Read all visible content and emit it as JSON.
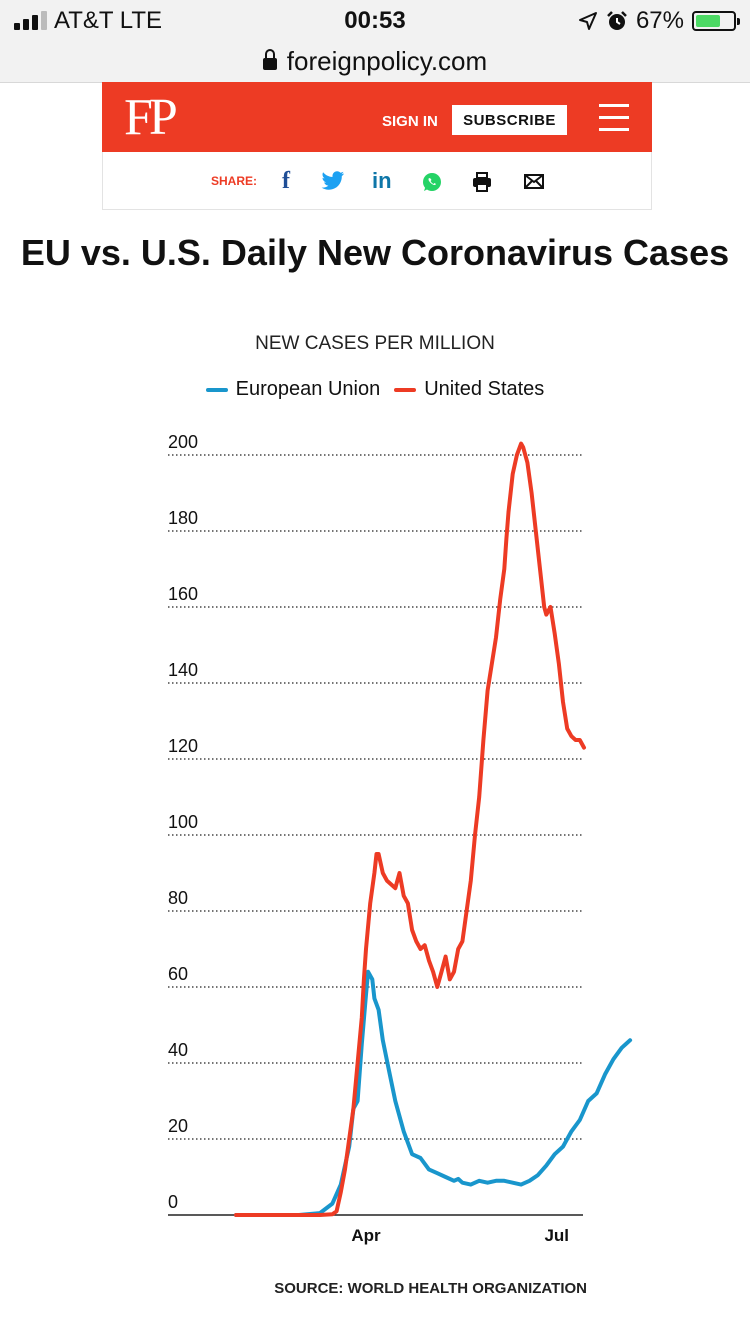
{
  "status_bar": {
    "carrier": "AT&T   LTE",
    "time": "00:53",
    "battery": "67%",
    "battery_level": 0.67
  },
  "browser": {
    "url": "foreignpolicy.com"
  },
  "header": {
    "logo": "FP",
    "sign_in": "SIGN IN",
    "subscribe": "SUBSCRIBE",
    "brand_color": "#ed3b24"
  },
  "share": {
    "label": "SHARE:",
    "icons": [
      "facebook-icon",
      "twitter-icon",
      "linkedin-icon",
      "whatsapp-icon",
      "print-icon",
      "email-icon"
    ]
  },
  "chart_data": {
    "type": "line",
    "title": "EU vs. U.S. Daily New Coronavirus Cases",
    "subtitle": "NEW CASES PER MILLION",
    "xlabel": "",
    "ylabel": "",
    "ylim": [
      0,
      200
    ],
    "yticks": [
      0,
      20,
      40,
      60,
      80,
      100,
      120,
      140,
      160,
      180,
      200
    ],
    "xticks": [
      {
        "label": "Apr",
        "day": 62
      },
      {
        "label": "Jul",
        "day": 153
      }
    ],
    "xlim": [
      0,
      240
    ],
    "grid": true,
    "legend_position": "top",
    "series": [
      {
        "name": "European Union",
        "color": "#1996cc",
        "points": [
          [
            0,
            0
          ],
          [
            30,
            0
          ],
          [
            40,
            0.5
          ],
          [
            46,
            3
          ],
          [
            50,
            8
          ],
          [
            54,
            18
          ],
          [
            56,
            28
          ],
          [
            58,
            30
          ],
          [
            60,
            45
          ],
          [
            62,
            58
          ],
          [
            63,
            64
          ],
          [
            65,
            62
          ],
          [
            66,
            57
          ],
          [
            68,
            54
          ],
          [
            70,
            46
          ],
          [
            73,
            38
          ],
          [
            76,
            30
          ],
          [
            80,
            22
          ],
          [
            84,
            16
          ],
          [
            88,
            15
          ],
          [
            92,
            12
          ],
          [
            96,
            11
          ],
          [
            100,
            10
          ],
          [
            104,
            9
          ],
          [
            106,
            9.5
          ],
          [
            108,
            8.5
          ],
          [
            112,
            8
          ],
          [
            116,
            9
          ],
          [
            120,
            8.5
          ],
          [
            124,
            9
          ],
          [
            128,
            9
          ],
          [
            132,
            8.5
          ],
          [
            136,
            8
          ],
          [
            140,
            9
          ],
          [
            144,
            10.5
          ],
          [
            148,
            13
          ],
          [
            152,
            16
          ],
          [
            156,
            18
          ],
          [
            160,
            22
          ],
          [
            164,
            25
          ],
          [
            168,
            30
          ],
          [
            172,
            32
          ],
          [
            176,
            37
          ],
          [
            180,
            41
          ],
          [
            184,
            44
          ],
          [
            186,
            45
          ],
          [
            188,
            46
          ]
        ]
      },
      {
        "name": "United States",
        "color": "#ed3b24",
        "points": [
          [
            0,
            0
          ],
          [
            40,
            0
          ],
          [
            46,
            0.2
          ],
          [
            48,
            1
          ],
          [
            50,
            6
          ],
          [
            52,
            12
          ],
          [
            54,
            20
          ],
          [
            56,
            28
          ],
          [
            58,
            40
          ],
          [
            60,
            52
          ],
          [
            61,
            62
          ],
          [
            62,
            70
          ],
          [
            64,
            82
          ],
          [
            66,
            90
          ],
          [
            67,
            95
          ],
          [
            68,
            95
          ],
          [
            70,
            90
          ],
          [
            72,
            88
          ],
          [
            74,
            87
          ],
          [
            76,
            86
          ],
          [
            78,
            90
          ],
          [
            80,
            84
          ],
          [
            82,
            82
          ],
          [
            84,
            75
          ],
          [
            86,
            72
          ],
          [
            88,
            70
          ],
          [
            90,
            71
          ],
          [
            92,
            67
          ],
          [
            94,
            64
          ],
          [
            96,
            60
          ],
          [
            98,
            64
          ],
          [
            100,
            68
          ],
          [
            102,
            62
          ],
          [
            104,
            64
          ],
          [
            106,
            70
          ],
          [
            108,
            72
          ],
          [
            110,
            80
          ],
          [
            112,
            88
          ],
          [
            114,
            100
          ],
          [
            116,
            110
          ],
          [
            118,
            125
          ],
          [
            120,
            138
          ],
          [
            122,
            145
          ],
          [
            124,
            152
          ],
          [
            126,
            162
          ],
          [
            128,
            170
          ],
          [
            129,
            178
          ],
          [
            130,
            185
          ],
          [
            132,
            195
          ],
          [
            134,
            200
          ],
          [
            136,
            203
          ],
          [
            137,
            202
          ],
          [
            139,
            198
          ],
          [
            141,
            190
          ],
          [
            143,
            180
          ],
          [
            145,
            170
          ],
          [
            147,
            160
          ],
          [
            148,
            158
          ],
          [
            150,
            160
          ],
          [
            152,
            153
          ],
          [
            154,
            145
          ],
          [
            156,
            135
          ],
          [
            158,
            128
          ],
          [
            160,
            126
          ],
          [
            162,
            125
          ],
          [
            164,
            125
          ],
          [
            166,
            123
          ]
        ]
      }
    ],
    "source": "SOURCE: WORLD HEALTH ORGANIZATION"
  }
}
